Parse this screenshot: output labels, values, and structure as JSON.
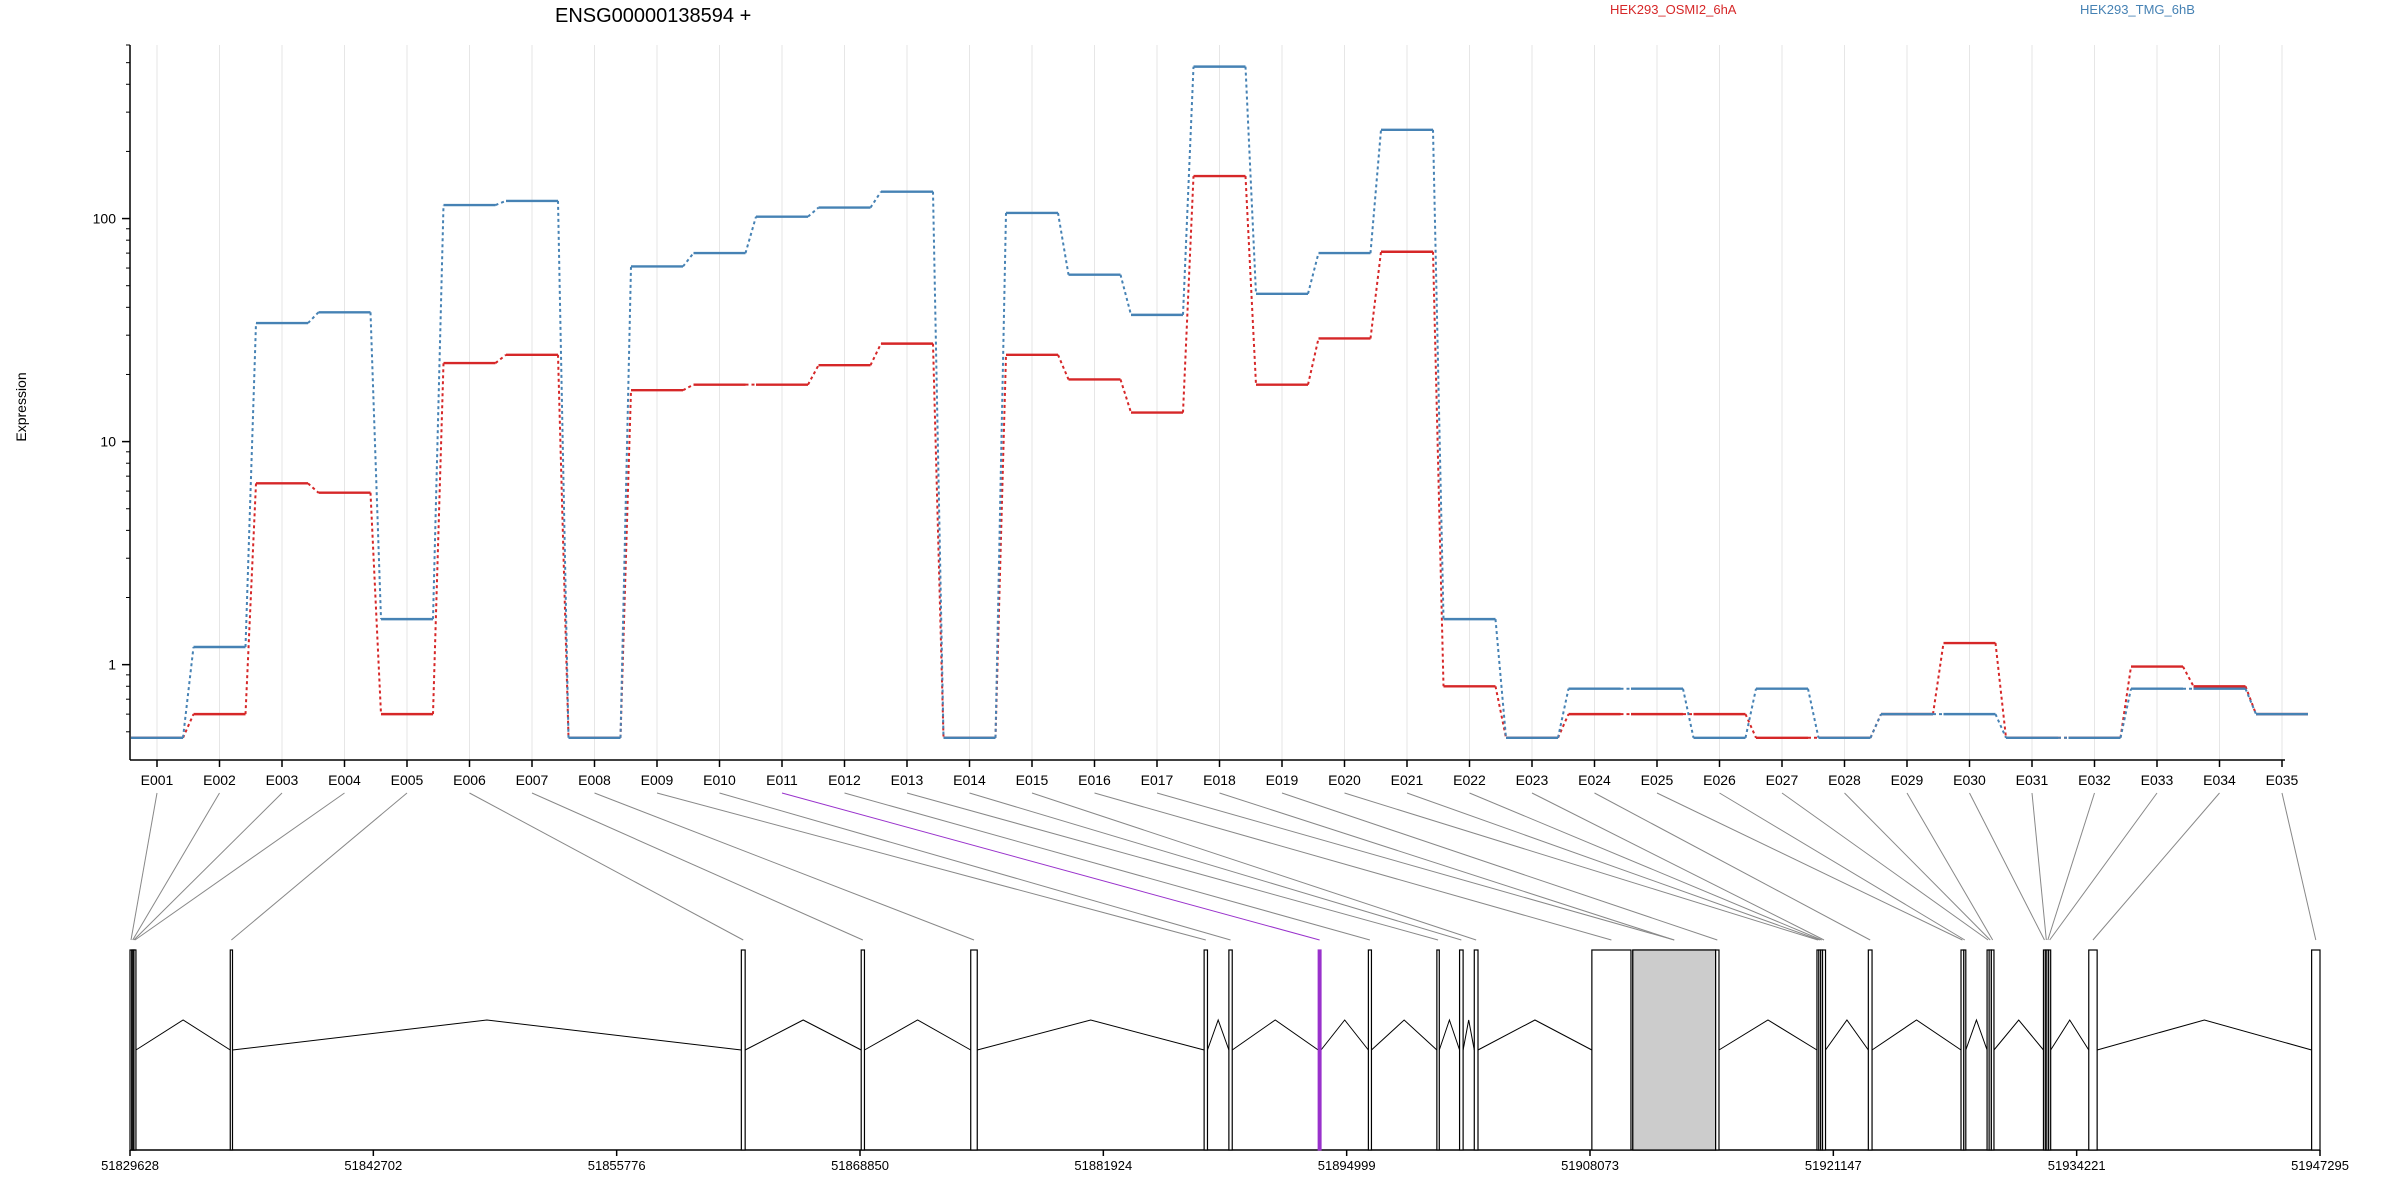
{
  "chart_data": {
    "type": "line",
    "title": "ENSG00000138594 +",
    "xlabel": "",
    "ylabel": "Expression",
    "y_scale": "log",
    "ylim": [
      0.45,
      600
    ],
    "y_ticks": [
      {
        "value": 1,
        "label": "1"
      },
      {
        "value": 10,
        "label": "10"
      },
      {
        "value": 100,
        "label": "100"
      }
    ],
    "grid": "vertical lines at each exon",
    "legend": "top-right",
    "categories": [
      "E001",
      "E002",
      "E003",
      "E004",
      "E005",
      "E006",
      "E007",
      "E008",
      "E009",
      "E010",
      "E011",
      "E012",
      "E013",
      "E014",
      "E015",
      "E016",
      "E017",
      "E018",
      "E019",
      "E020",
      "E021",
      "E022",
      "E023",
      "E024",
      "E025",
      "E026",
      "E027",
      "E028",
      "E029",
      "E030",
      "E031",
      "E032",
      "E033",
      "E034",
      "E035"
    ],
    "series": [
      {
        "name": "HEK293_OSMI2_6hA",
        "color": "#d62728",
        "values": [
          0.47,
          0.6,
          6.5,
          5.9,
          0.6,
          22.5,
          24.5,
          0.47,
          17,
          18,
          18,
          22,
          27.5,
          0.47,
          24.5,
          19,
          13.5,
          155,
          18,
          29,
          71,
          0.8,
          0.47,
          0.6,
          0.6,
          0.6,
          0.47,
          0.47,
          0.6,
          1.25,
          0.47,
          0.47,
          0.98,
          0.8,
          0.6
        ]
      },
      {
        "name": "HEK293_TMG_6hB",
        "color": "#4682b4",
        "values": [
          0.47,
          1.2,
          34,
          38,
          1.6,
          115,
          120,
          0.47,
          61,
          70,
          102,
          112,
          132,
          0.47,
          106,
          56,
          37,
          480,
          46,
          70,
          250,
          1.6,
          0.47,
          0.78,
          0.78,
          0.47,
          0.78,
          0.47,
          0.6,
          0.6,
          0.47,
          0.47,
          0.78,
          0.78,
          0.6
        ]
      }
    ],
    "highlighted_exon": "E011",
    "highlight_color": "#9932cc",
    "genomic_axis": {
      "range": [
        51829628,
        51947295
      ],
      "tick_labels": [
        "51829628",
        "51842702",
        "51855776",
        "51868850",
        "51881924",
        "51894999",
        "51908073",
        "51921147",
        "51934221",
        "51947295"
      ]
    },
    "exons": [
      {
        "id": "E001",
        "start": 51829628,
        "end": 51829720
      },
      {
        "id": "E002",
        "start": 51829720,
        "end": 51829780
      },
      {
        "id": "E003",
        "start": 51829780,
        "end": 51829840
      },
      {
        "id": "E004",
        "start": 51829840,
        "end": 51829900
      },
      {
        "id": "E005",
        "start": 51835015,
        "end": 51835135
      },
      {
        "id": "E006",
        "start": 51862475,
        "end": 51862680
      },
      {
        "id": "E007",
        "start": 51868915,
        "end": 51869090
      },
      {
        "id": "E008",
        "start": 51874800,
        "end": 51875150
      },
      {
        "id": "E009",
        "start": 51887340,
        "end": 51887520
      },
      {
        "id": "E010",
        "start": 51888670,
        "end": 51888850
      },
      {
        "id": "E011",
        "start": 51893470,
        "end": 51893620
      },
      {
        "id": "E012",
        "start": 51896165,
        "end": 51896330
      },
      {
        "id": "E013",
        "start": 51899845,
        "end": 51899975
      },
      {
        "id": "E014",
        "start": 51901065,
        "end": 51901255
      },
      {
        "id": "E015",
        "start": 51901855,
        "end": 51902055
      },
      {
        "id": "E016",
        "start": 51908173,
        "end": 51910273
      },
      {
        "id": "E017",
        "start": 51910373,
        "end": 51914823
      },
      {
        "id": "E018",
        "start": 51910373,
        "end": 51914823
      },
      {
        "id": "E019",
        "start": 51914823,
        "end": 51915003
      },
      {
        "id": "E020",
        "start": 51920267,
        "end": 51920367
      },
      {
        "id": "E021",
        "start": 51920367,
        "end": 51920467
      },
      {
        "id": "E022",
        "start": 51920467,
        "end": 51920567
      },
      {
        "id": "E023",
        "start": 51920567,
        "end": 51920727
      },
      {
        "id": "E024",
        "start": 51923027,
        "end": 51923227
      },
      {
        "id": "E025",
        "start": 51928007,
        "end": 51928157
      },
      {
        "id": "E026",
        "start": 51928157,
        "end": 51928257
      },
      {
        "id": "E027",
        "start": 51929407,
        "end": 51929517
      },
      {
        "id": "E028",
        "start": 51929517,
        "end": 51929637
      },
      {
        "id": "E029",
        "start": 51929637,
        "end": 51929777
      },
      {
        "id": "E030",
        "start": 51932437,
        "end": 51932537
      },
      {
        "id": "E031",
        "start": 51932537,
        "end": 51932617
      },
      {
        "id": "E032",
        "start": 51932617,
        "end": 51932717
      },
      {
        "id": "E033",
        "start": 51932717,
        "end": 51932807
      },
      {
        "id": "E034",
        "start": 51934871,
        "end": 51935321
      },
      {
        "id": "E035",
        "start": 51946845,
        "end": 51947295
      }
    ],
    "gray_exons": [
      "E017",
      "E018"
    ]
  }
}
